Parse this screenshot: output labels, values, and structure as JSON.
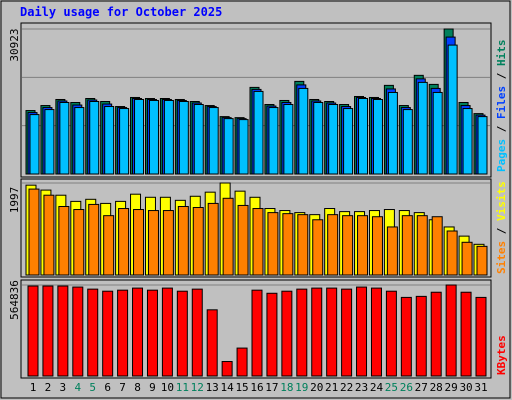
{
  "chart_data": {
    "type": "bar",
    "title": "Daily usage for October 2025",
    "categories": [
      "1",
      "2",
      "3",
      "4",
      "5",
      "6",
      "7",
      "8",
      "9",
      "10",
      "11",
      "12",
      "13",
      "14",
      "15",
      "16",
      "17",
      "18",
      "19",
      "20",
      "21",
      "22",
      "23",
      "24",
      "25",
      "26",
      "27",
      "28",
      "29",
      "30",
      "31"
    ],
    "x_label_colors": [
      "#000000",
      "#000000",
      "#000000",
      "#00805c",
      "#00805c",
      "#000000",
      "#000000",
      "#000000",
      "#000000",
      "#000000",
      "#00805c",
      "#00805c",
      "#000000",
      "#000000",
      "#000000",
      "#000000",
      "#000000",
      "#00805c",
      "#00805c",
      "#000000",
      "#000000",
      "#000000",
      "#000000",
      "#000000",
      "#00805c",
      "#00805c",
      "#000000",
      "#000000",
      "#000000",
      "#000000",
      "#000000"
    ],
    "grid": true,
    "panels": [
      {
        "ylim": [
          0,
          30923
        ],
        "yticks": [
          30923
        ],
        "series": [
          {
            "name": "Hits",
            "color": "#00805c",
            "values": [
              13530,
              14600,
              15890,
              15245,
              16100,
              15460,
              14390,
              16320,
              16100,
              16100,
              15890,
              15460,
              14600,
              12240,
              12020,
              18470,
              14820,
              15680,
              19750,
              15890,
              15460,
              14820,
              16530,
              16320,
              18900,
              14600,
              21040,
              19110,
              30923,
              15250,
              12880
            ]
          },
          {
            "name": "Files",
            "color": "#0040ff",
            "values": [
              13100,
              14170,
              15570,
              14710,
              15780,
              14920,
              14170,
              16100,
              15890,
              15890,
              15670,
              15140,
              14380,
              12020,
              11810,
              18040,
              14490,
              15250,
              19000,
              15570,
              15140,
              14390,
              16310,
              16100,
              18140,
              14170,
              20290,
              18250,
              29200,
              14600,
              12560
            ]
          },
          {
            "name": "Pages",
            "color": "#00c0ff",
            "values": [
              12670,
              13740,
              15250,
              14170,
              15460,
              14390,
              13960,
              15890,
              15680,
              15680,
              15460,
              14820,
              14170,
              11810,
              11600,
              17610,
              14170,
              14820,
              18250,
              15250,
              14820,
              13960,
              16100,
              15890,
              17390,
              13740,
              19540,
              17390,
              27490,
              13960,
              12240
            ]
          }
        ]
      },
      {
        "ylim": [
          0,
          1997
        ],
        "yticks": [
          1997
        ],
        "series": [
          {
            "name": "Visits",
            "color": "#ffff00",
            "values": [
              1950,
              1843,
              1732,
              1598,
              1643,
              1554,
              1598,
              1754,
              1687,
              1687,
              1621,
              1709,
              1798,
              1997,
              1820,
              1687,
              1443,
              1399,
              1354,
              1310,
              1443,
              1376,
              1376,
              1399,
              1421,
              1399,
              1354,
              1199,
              1043,
              844,
              666
            ]
          },
          {
            "name": "Sites",
            "color": "#ff8000",
            "values": [
              1865,
              1732,
              1487,
              1421,
              1532,
              1288,
              1443,
              1421,
              1399,
              1399,
              1487,
              1465,
              1554,
              1665,
              1510,
              1443,
              1354,
              1332,
              1310,
              1199,
              1310,
              1288,
              1288,
              1265,
              1043,
              1288,
              1288,
              1265,
              955,
              710,
              622
            ]
          }
        ]
      },
      {
        "ylim": [
          0,
          564836
        ],
        "yticks": [
          564836
        ],
        "series": [
          {
            "name": "KBytes",
            "color": "#ff0000",
            "values": [
              558450,
              558450,
              558450,
              552030,
              539200,
              526360,
              532780,
              545600,
              532780,
              545600,
              526360,
              539200,
              410800,
              89870,
              173300,
              532780,
              513500,
              526360,
              539200,
              545600,
              545600,
              539200,
              552030,
              545600,
              526360,
              487850,
              494250,
              519940,
              564836,
              519940,
              487850
            ]
          }
        ]
      }
    ]
  }
}
